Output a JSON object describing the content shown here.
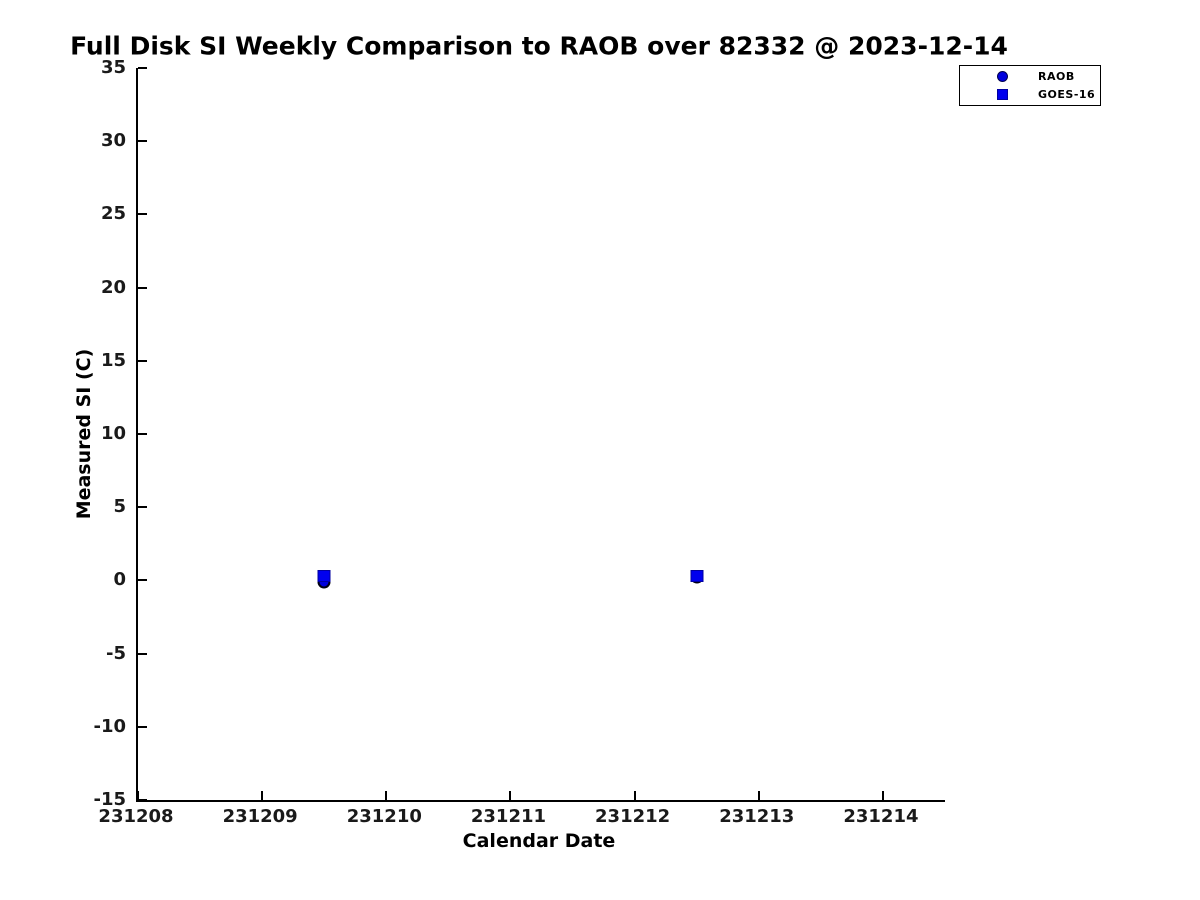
{
  "title": "Full Disk SI Weekly Comparison to RAOB over 82332 @ 2023-12-14",
  "chart_data": {
    "type": "scatter",
    "title": "Full Disk SI Weekly Comparison to RAOB over 82332 @ 2023-12-14",
    "xlabel": "Calendar Date",
    "ylabel": "Measured SI (C)",
    "xlim": [
      231208,
      231214.5
    ],
    "ylim": [
      -15,
      35
    ],
    "x_ticks": [
      231208,
      231209,
      231210,
      231211,
      231212,
      231213,
      231214
    ],
    "x_tick_labels": [
      "231208",
      "231209",
      "231210",
      "231211",
      "231212",
      "231213",
      "231214"
    ],
    "y_ticks": [
      -15,
      -10,
      -5,
      0,
      5,
      10,
      15,
      20,
      25,
      30,
      35
    ],
    "y_tick_labels": [
      "-15",
      "-10",
      "-5",
      "0",
      "5",
      "10",
      "15",
      "20",
      "25",
      "30",
      "35"
    ],
    "grid": false,
    "legend_position": "top-right",
    "series": [
      {
        "name": "RAOB",
        "marker": "circle",
        "color": "#0000dd",
        "edge_color": "#000014",
        "points": [
          {
            "x": 231209.5,
            "y": -0.1
          },
          {
            "x": 231212.5,
            "y": 0.2
          }
        ]
      },
      {
        "name": "GOES-16",
        "marker": "square",
        "color": "#0000ee",
        "edge_color": "#0000a0",
        "points": [
          {
            "x": 231209.5,
            "y": 0.3
          },
          {
            "x": 231212.5,
            "y": 0.3
          }
        ]
      }
    ]
  },
  "colors": {
    "axis": "#000000",
    "text": "#1a1a1a",
    "marker_blue": "#0000ee",
    "background": "#ffffff"
  }
}
